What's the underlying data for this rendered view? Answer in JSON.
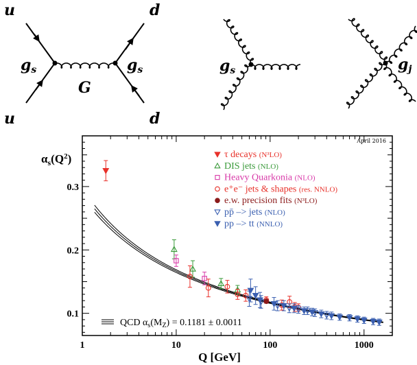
{
  "diagrams": {
    "exchange": {
      "labels": {
        "top_left": "u",
        "top_right": "d",
        "bottom_left": "u",
        "bottom_right": "d",
        "vertex_left": "g",
        "vertex_left_sub": "s",
        "vertex_right": "g",
        "vertex_right_sub": "s",
        "propagator": "G"
      }
    },
    "triple_vertex": {
      "labels": {
        "vertex": "g",
        "vertex_sub": "s"
      }
    },
    "quartic_vertex": {
      "labels": {
        "vertex": "g",
        "vertex_sub": "j"
      }
    }
  },
  "chart_data": {
    "type": "scatter",
    "title": "",
    "annotation": "April 2016",
    "xlabel": "Q [GeV]",
    "ylabel": "αs(Q²)",
    "ylabel_main": "α",
    "ylabel_sub": "s",
    "ylabel_arg": "(Q",
    "ylabel_sup": "2",
    "ylabel_close": ")",
    "x_scale": "log",
    "xlim": [
      1,
      2000
    ],
    "ylim": [
      0.065,
      0.38
    ],
    "x_ticks": [
      {
        "value": 1,
        "label": "1"
      },
      {
        "value": 10,
        "label": "10"
      },
      {
        "value": 100,
        "label": "100"
      },
      {
        "value": 1000,
        "label": "1000"
      }
    ],
    "y_ticks": [
      {
        "value": 0.1,
        "label": "0.1"
      },
      {
        "value": 0.2,
        "label": "0.2"
      },
      {
        "value": 0.3,
        "label": "0.3"
      }
    ],
    "fit_label": {
      "prefix": "QCD α",
      "sub1": "s",
      "mid": "(M",
      "sub2": "Z",
      "suffix": ") = 0.1181 ± 0.0011"
    },
    "band": {
      "alpha_mz": 0.1181,
      "uncertainty": 0.0011
    },
    "legend_position": "top-right",
    "series": [
      {
        "name": "τ decays",
        "name_note": "(N³LO)",
        "color": "#e8312a",
        "marker": "triangle-down-filled",
        "points": [
          {
            "x": 1.78,
            "y": 0.325,
            "err": 0.016
          }
        ]
      },
      {
        "name": "DIS jets",
        "name_note": "(NLO)",
        "color": "#3a9a3a",
        "marker": "triangle-up-open",
        "points": [
          {
            "x": 9.5,
            "y": 0.201,
            "err": 0.015
          },
          {
            "x": 15,
            "y": 0.17,
            "err": 0.013
          },
          {
            "x": 30,
            "y": 0.147,
            "err": 0.008
          },
          {
            "x": 45,
            "y": 0.137,
            "err": 0.007
          }
        ]
      },
      {
        "name": "Heavy Quarkonia",
        "name_note": "(NLO)",
        "color": "#d83aa8",
        "marker": "square-open",
        "points": [
          {
            "x": 10,
            "y": 0.183,
            "err": 0.009
          },
          {
            "x": 20,
            "y": 0.155,
            "err": 0.01
          }
        ]
      },
      {
        "name": "e⁺e⁻ jets & shapes",
        "name_note": "(res. NNLO)",
        "color": "#e8312a",
        "marker": "circle-open",
        "points": [
          {
            "x": 14,
            "y": 0.158,
            "err": 0.017
          },
          {
            "x": 22,
            "y": 0.14,
            "err": 0.014
          },
          {
            "x": 35,
            "y": 0.142,
            "err": 0.01
          },
          {
            "x": 45,
            "y": 0.13,
            "err": 0.008
          },
          {
            "x": 55,
            "y": 0.128,
            "err": 0.009
          },
          {
            "x": 91,
            "y": 0.121,
            "err": 0.005
          },
          {
            "x": 133,
            "y": 0.113,
            "err": 0.008
          },
          {
            "x": 161,
            "y": 0.118,
            "err": 0.009
          },
          {
            "x": 183,
            "y": 0.11,
            "err": 0.007
          },
          {
            "x": 200,
            "y": 0.109,
            "err": 0.006
          }
        ]
      },
      {
        "name": "e.w. precision fits",
        "name_note": "(N³LO)",
        "color": "#8b1a1a",
        "marker": "circle-filled",
        "points": [
          {
            "x": 91.2,
            "y": 0.119,
            "err": 0.003
          }
        ]
      },
      {
        "name": "pp̄ –> jets",
        "name_note": "(NLO)",
        "color": "#3a5fb0",
        "marker": "triangle-down-open",
        "points": [
          {
            "x": 60,
            "y": 0.123,
            "err": 0.012
          },
          {
            "x": 80,
            "y": 0.118,
            "err": 0.01
          },
          {
            "x": 120,
            "y": 0.112,
            "err": 0.008
          },
          {
            "x": 160,
            "y": 0.108,
            "err": 0.007
          },
          {
            "x": 200,
            "y": 0.106,
            "err": 0.006
          },
          {
            "x": 250,
            "y": 0.104,
            "err": 0.006
          },
          {
            "x": 300,
            "y": 0.101,
            "err": 0.006
          },
          {
            "x": 400,
            "y": 0.097,
            "err": 0.006
          }
        ]
      },
      {
        "name": "pp –> tt",
        "name_note": "(NNLO)",
        "color": "#3a5fb0",
        "marker": "triangle-down-filled",
        "points": [
          {
            "x": 62,
            "y": 0.136,
            "err": 0.018
          },
          {
            "x": 70,
            "y": 0.128,
            "err": 0.014
          },
          {
            "x": 78,
            "y": 0.121,
            "err": 0.012
          },
          {
            "x": 110,
            "y": 0.115,
            "err": 0.01
          },
          {
            "x": 140,
            "y": 0.112,
            "err": 0.008
          },
          {
            "x": 180,
            "y": 0.108,
            "err": 0.007
          },
          {
            "x": 230,
            "y": 0.104,
            "err": 0.006
          },
          {
            "x": 280,
            "y": 0.102,
            "err": 0.006
          },
          {
            "x": 350,
            "y": 0.099,
            "err": 0.006
          },
          {
            "x": 450,
            "y": 0.096,
            "err": 0.006
          },
          {
            "x": 550,
            "y": 0.094,
            "err": 0.005
          },
          {
            "x": 700,
            "y": 0.093,
            "err": 0.005
          },
          {
            "x": 850,
            "y": 0.091,
            "err": 0.005
          },
          {
            "x": 1000,
            "y": 0.089,
            "err": 0.005
          },
          {
            "x": 1250,
            "y": 0.087,
            "err": 0.005
          },
          {
            "x": 1450,
            "y": 0.086,
            "err": 0.005
          }
        ]
      }
    ]
  }
}
